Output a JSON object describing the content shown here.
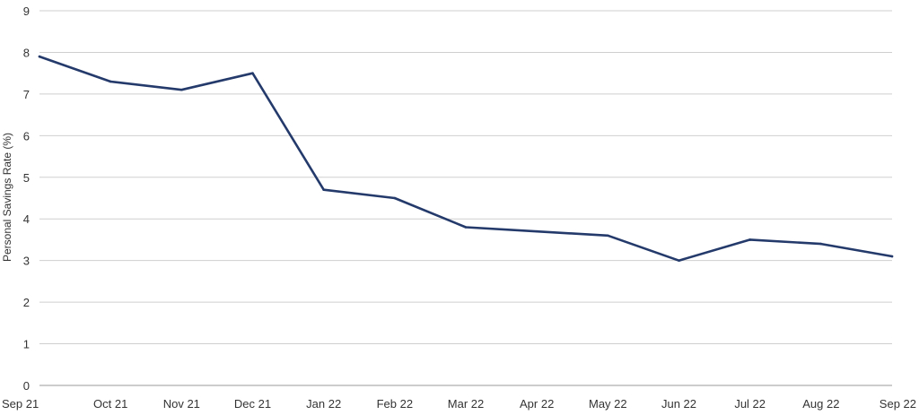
{
  "chart_data": {
    "type": "line",
    "title": "",
    "xlabel": "",
    "ylabel": "Personal Savings Rate (%)",
    "ylim": [
      0,
      9
    ],
    "yticks": [
      0,
      1,
      2,
      3,
      4,
      5,
      6,
      7,
      8,
      9
    ],
    "grid": true,
    "legend": "none",
    "categories": [
      "Sep 21",
      "Oct 21",
      "Nov 21",
      "Dec 21",
      "Jan 22",
      "Feb 22",
      "Mar 22",
      "Apr 22",
      "May 22",
      "Jun 22",
      "Jul 22",
      "Aug 22",
      "Sep 22"
    ],
    "series": [
      {
        "values": [
          7.9,
          7.3,
          7.1,
          7.5,
          4.7,
          4.5,
          3.8,
          3.7,
          3.6,
          3.0,
          3.5,
          3.4,
          3.1
        ],
        "color": "#243a6b"
      }
    ]
  }
}
